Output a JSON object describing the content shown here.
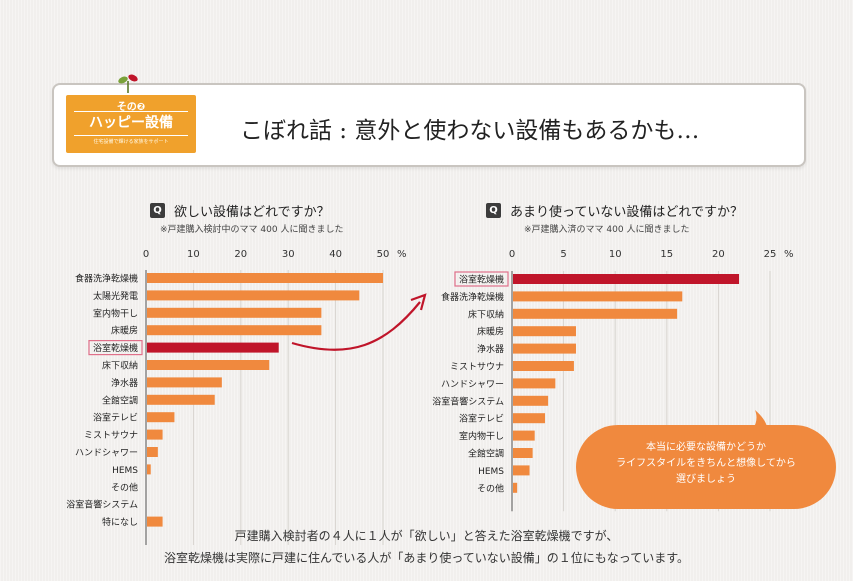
{
  "header": {
    "badge_no": "その❷",
    "badge_title": "ハッピー設備",
    "badge_sub": "住宅設備で輝ける家族をサポート",
    "title": "こぼれ話 : 意外と使わない設備もあるかも…"
  },
  "colors": {
    "bar": "#f0893e",
    "highlight": "#c0152a",
    "axis": "#555555",
    "bubble": "#f0893e"
  },
  "chart_data": [
    {
      "type": "bar",
      "orientation": "horizontal",
      "question_icon": "Q",
      "title": "欲しい設備はどれですか？",
      "subtitle": "※戸建購入検討中のママ 400 人に聞きました",
      "ticks": [
        "0",
        "10",
        "20",
        "30",
        "40",
        "50"
      ],
      "unit": "%",
      "xlim": [
        0,
        50
      ],
      "highlight": "浴室乾燥機",
      "categories": [
        "食器洗浄乾燥機",
        "太陽光発電",
        "室内物干し",
        "床暖房",
        "浴室乾燥機",
        "床下収納",
        "浄水器",
        "全館空調",
        "浴室テレビ",
        "ミストサウナ",
        "ハンドシャワー",
        "HEMS",
        "その他",
        "浴室音響システム",
        "特になし"
      ],
      "values": [
        50,
        45,
        37,
        37,
        28,
        26,
        16,
        14.5,
        6,
        3.5,
        2.5,
        1,
        0,
        0,
        3.5
      ]
    },
    {
      "type": "bar",
      "orientation": "horizontal",
      "question_icon": "Q",
      "title": "あまり使っていない設備はどれですか？",
      "subtitle": "※戸建購入済のママ 400 人に聞きました",
      "ticks": [
        "0",
        "5",
        "10",
        "15",
        "20",
        "25"
      ],
      "unit": "%",
      "xlim": [
        0,
        25
      ],
      "highlight": "浴室乾燥機",
      "categories": [
        "浴室乾燥機",
        "食器洗浄乾燥機",
        "床下収納",
        "床暖房",
        "浄水器",
        "ミストサウナ",
        "ハンドシャワー",
        "浴室音響システム",
        "浴室テレビ",
        "室内物干し",
        "全館空調",
        "HEMS",
        "その他"
      ],
      "values": [
        22,
        16.5,
        16,
        6.2,
        6.2,
        6,
        4.2,
        3.5,
        3.2,
        2.2,
        2,
        1.7,
        0.5
      ]
    }
  ],
  "bubble": {
    "lines": [
      "本当に必要な設備かどうか",
      "ライフスタイルをきちんと想像してから",
      "選びましょう"
    ]
  },
  "footer": {
    "lines": [
      "戸建購入検討者の４人に１人が「欲しい」と答えた浴室乾燥機ですが、",
      "浴室乾燥機は実際に戸建に住んでいる人が「あまり使っていない設備」の１位にもなっています。"
    ]
  }
}
